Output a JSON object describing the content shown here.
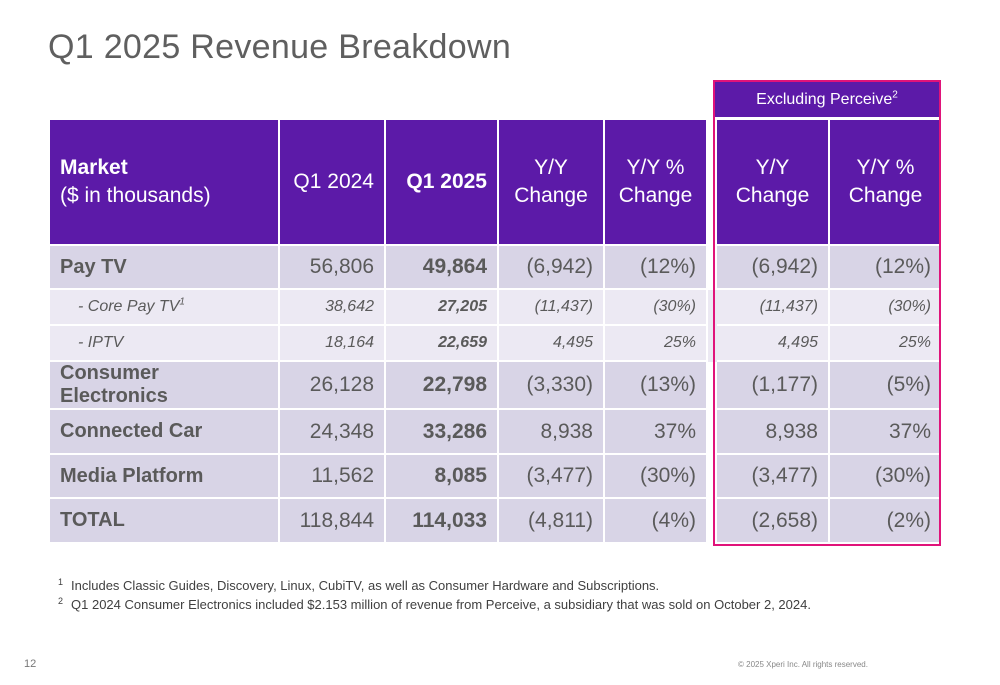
{
  "title": "Q1 2025 Revenue Breakdown",
  "exclusion_header": "Excluding Perceive",
  "exclusion_sup": "2",
  "headers": {
    "market_bold": "Market",
    "market_sub": "($ in thousands)",
    "q1_2024": "Q1 2024",
    "q1_2025": "Q1 2025",
    "yy_change_1": "Y/Y",
    "yy_change_2": "Change",
    "yy_pct_1": "Y/Y %",
    "yy_pct_2": "Change",
    "ex_yy_change_1": "Y/Y",
    "ex_yy_change_2": "Change",
    "ex_yy_pct_1": "Y/Y %",
    "ex_yy_pct_2": "Change"
  },
  "rows": [
    {
      "market": "Pay TV",
      "q1_2024": "56,806",
      "q1_2025": "49,864",
      "yy_change": "(6,942)",
      "yy_pct": "(12%)",
      "ex_change": "(6,942)",
      "ex_pct": "(12%)"
    },
    {
      "market": "- Core Pay TV",
      "sup": "1",
      "q1_2024": "38,642",
      "q1_2025": "27,205",
      "yy_change": "(11,437)",
      "yy_pct": "(30%)",
      "ex_change": "(11,437)",
      "ex_pct": "(30%)"
    },
    {
      "market": "- IPTV",
      "q1_2024": "18,164",
      "q1_2025": "22,659",
      "yy_change": "4,495",
      "yy_pct": "25%",
      "ex_change": "4,495",
      "ex_pct": "25%"
    },
    {
      "market": "Consumer Electronics",
      "q1_2024": "26,128",
      "q1_2025": "22,798",
      "yy_change": "(3,330)",
      "yy_pct": "(13%)",
      "ex_change": "(1,177)",
      "ex_pct": "(5%)"
    },
    {
      "market": "Connected Car",
      "q1_2024": "24,348",
      "q1_2025": "33,286",
      "yy_change": "8,938",
      "yy_pct": "37%",
      "ex_change": "8,938",
      "ex_pct": "37%"
    },
    {
      "market": "Media Platform",
      "q1_2024": "11,562",
      "q1_2025": "8,085",
      "yy_change": "(3,477)",
      "yy_pct": "(30%)",
      "ex_change": "(3,477)",
      "ex_pct": "(30%)"
    },
    {
      "market": "TOTAL",
      "q1_2024": "118,844",
      "q1_2025": "114,033",
      "yy_change": "(4,811)",
      "yy_pct": "(4%)",
      "ex_change": "(2,658)",
      "ex_pct": "(2%)"
    }
  ],
  "footnotes": [
    {
      "num": "1",
      "text": "Includes Classic Guides, Discovery, Linux, CubiTV, as well as Consumer Hardware and Subscriptions."
    },
    {
      "num": "2",
      "text": "Q1 2024 Consumer Electronics included $2.153 million of revenue from Perceive, a subsidiary that was sold on October 2, 2024."
    }
  ],
  "page_number": "12",
  "copyright": "© 2025 Xperi Inc. All rights reserved.",
  "colors": {
    "header_purple": "#5c1aa8",
    "highlight_border": "#e0137a",
    "row_main": "#d8d4e6",
    "row_sub": "#ece9f3"
  }
}
